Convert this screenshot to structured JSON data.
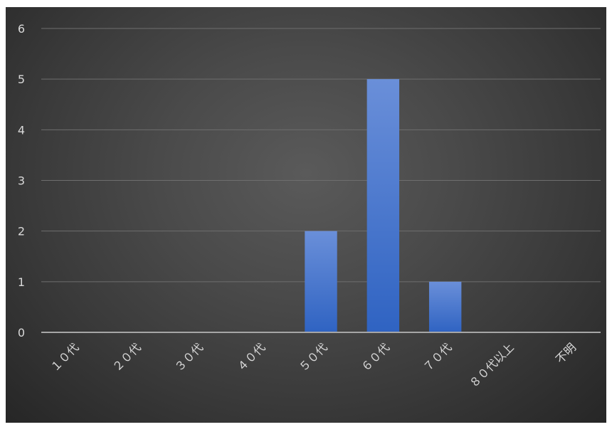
{
  "colors": {
    "bar_top": "#6a8fd9",
    "bar_bottom": "#2f63c2"
  },
  "chart_data": {
    "type": "bar",
    "title": "",
    "xlabel": "",
    "ylabel": "",
    "categories": [
      "１０代",
      "２０代",
      "３０代",
      "４０代",
      "５０代",
      "６０代",
      "７０代",
      "８０代以上",
      "不明"
    ],
    "values": [
      0,
      0,
      0,
      0,
      2,
      5,
      1,
      0,
      0
    ],
    "ylim": [
      0,
      6
    ],
    "yticks": [
      0,
      1,
      2,
      3,
      4,
      5,
      6
    ],
    "grid": true,
    "legend": "none"
  }
}
